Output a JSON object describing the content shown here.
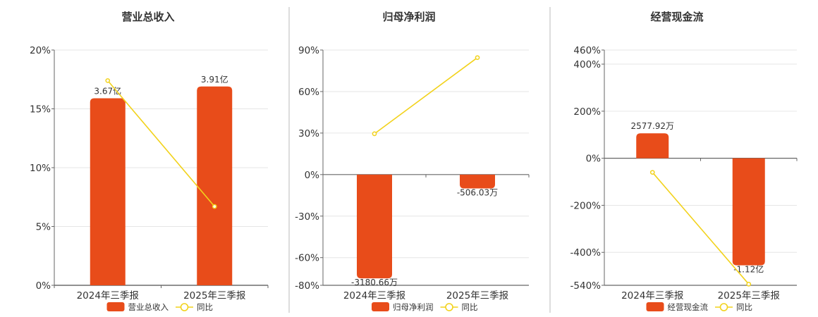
{
  "colors": {
    "bar": "#E84C1A",
    "line": "#F2D21B",
    "axis": "#666666",
    "grid": "#E6E6E6",
    "divider": "#BBBBBB",
    "text": "#333333"
  },
  "legend": {
    "line_label": "同比"
  },
  "chart_data": [
    {
      "type": "bar",
      "title": "营业总收入",
      "categories": [
        "2024年三季报",
        "2025年三季报"
      ],
      "series": [
        {
          "name": "营业总收入",
          "type": "bar",
          "values": [
            15.9,
            16.9
          ],
          "labels": [
            "3.67亿",
            "3.91亿"
          ]
        },
        {
          "name": "同比",
          "type": "line",
          "values": [
            17.4,
            6.7
          ]
        }
      ],
      "yticks": [
        0,
        5,
        10,
        15,
        20
      ],
      "ytick_labels": [
        "0%",
        "5%",
        "10%",
        "15%",
        "20%"
      ],
      "ylim": [
        0,
        20
      ],
      "grid": true,
      "legend_position": "bottom"
    },
    {
      "type": "bar",
      "title": "归母净利润",
      "categories": [
        "2024年三季报",
        "2025年三季报"
      ],
      "series": [
        {
          "name": "归母净利润",
          "type": "bar",
          "values": [
            -75,
            -10
          ],
          "labels": [
            "-3180.66万",
            "-506.03万"
          ]
        },
        {
          "name": "同比",
          "type": "line",
          "values": [
            29.5,
            84.5
          ]
        }
      ],
      "yticks": [
        -80,
        -60,
        -30,
        0,
        30,
        60,
        90
      ],
      "ytick_labels": [
        "-80%",
        "-60%",
        "-30%",
        "0%",
        "30%",
        "60%",
        "90%"
      ],
      "ylim": [
        -80,
        90
      ],
      "grid": true,
      "legend_position": "bottom"
    },
    {
      "type": "bar",
      "title": "经营现金流",
      "categories": [
        "2024年三季报",
        "2025年三季报"
      ],
      "series": [
        {
          "name": "经营现金流",
          "type": "bar",
          "values": [
            106,
            -455
          ],
          "labels": [
            "2577.92万",
            "-1.12亿"
          ]
        },
        {
          "name": "同比",
          "type": "line",
          "values": [
            -60,
            -535
          ]
        }
      ],
      "yticks": [
        -540,
        -400,
        -200,
        0,
        200,
        400,
        460
      ],
      "ytick_labels": [
        "-540%",
        "-400%",
        "-200%",
        "0%",
        "200%",
        "400%",
        "460%"
      ],
      "ylim": [
        -540,
        460
      ],
      "grid": true,
      "legend_position": "bottom"
    }
  ]
}
